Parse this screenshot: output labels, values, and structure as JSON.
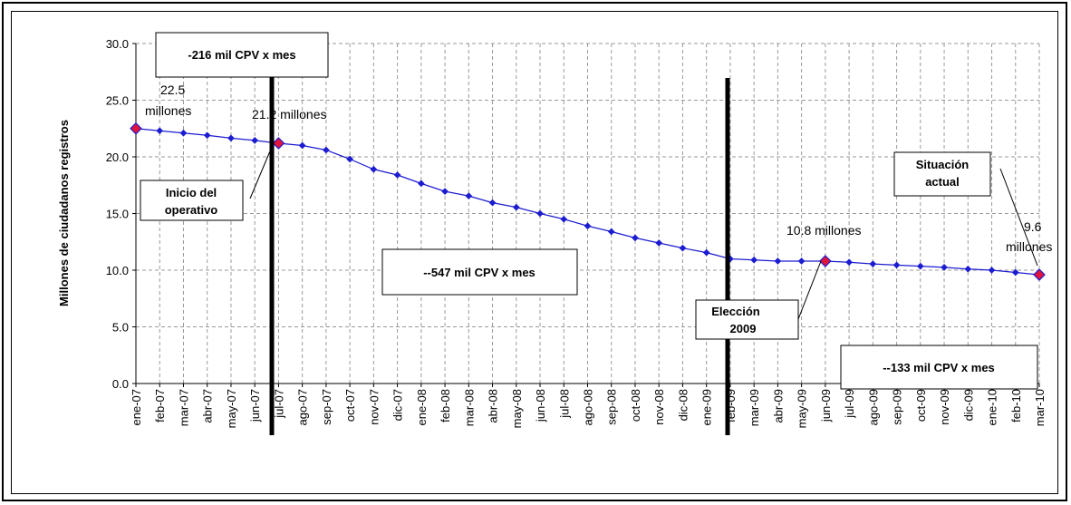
{
  "chart_data": {
    "type": "line",
    "ylabel": "Millones de ciudadanos registros",
    "ylim": [
      0,
      30
    ],
    "yticks": [
      "0.0",
      "5.0",
      "10.0",
      "15.0",
      "20.0",
      "25.0",
      "30.0"
    ],
    "grid": true,
    "categories": [
      "ene-07",
      "feb-07",
      "mar-07",
      "abr-07",
      "may-07",
      "jun-07",
      "jul-07",
      "ago-07",
      "sep-07",
      "oct-07",
      "nov-07",
      "dic-07",
      "ene-08",
      "feb-08",
      "mar-08",
      "abr-08",
      "may-08",
      "jun-08",
      "jul-08",
      "ago-08",
      "sep-08",
      "oct-08",
      "nov-08",
      "dic-08",
      "ene-09",
      "feb-09",
      "mar-09",
      "abr-09",
      "may-09",
      "jun-09",
      "jul-09",
      "ago-09",
      "sep-09",
      "oct-09",
      "nov-09",
      "dic-09",
      "ene-10",
      "feb-10",
      "mar-10"
    ],
    "series": [
      {
        "color": "#1c1cd0",
        "marker_color": "#1c1cd0",
        "highlight_color": "#e0143c",
        "highlight_indices": [
          0,
          6,
          29,
          38
        ],
        "values": [
          22.5,
          22.3,
          22.1,
          21.9,
          21.65,
          21.45,
          21.2,
          21.0,
          20.6,
          19.8,
          18.9,
          18.4,
          17.65,
          16.95,
          16.55,
          15.95,
          15.55,
          15.0,
          14.5,
          13.9,
          13.4,
          12.85,
          12.4,
          11.95,
          11.55,
          11.0,
          10.9,
          10.8,
          10.8,
          10.8,
          10.7,
          10.55,
          10.45,
          10.35,
          10.25,
          10.1,
          10.0,
          9.8,
          9.6
        ]
      }
    ],
    "annotations": {
      "start_label": [
        "22.5",
        "millones"
      ],
      "jul_label": "21.2 millones",
      "jun09_label": "10.8 millones",
      "end_label": [
        "9.6",
        "millones"
      ],
      "box_top": "-216 mil CPV  x mes",
      "box_inicio": [
        "Inicio del",
        "operativo"
      ],
      "box_mid": "--547 mil CPV x mes",
      "box_eleccion": [
        "Elección",
        "2009"
      ],
      "box_situacion": [
        "Situación",
        "actual"
      ],
      "box_bottom": "--133 mil CPV x mes"
    }
  }
}
